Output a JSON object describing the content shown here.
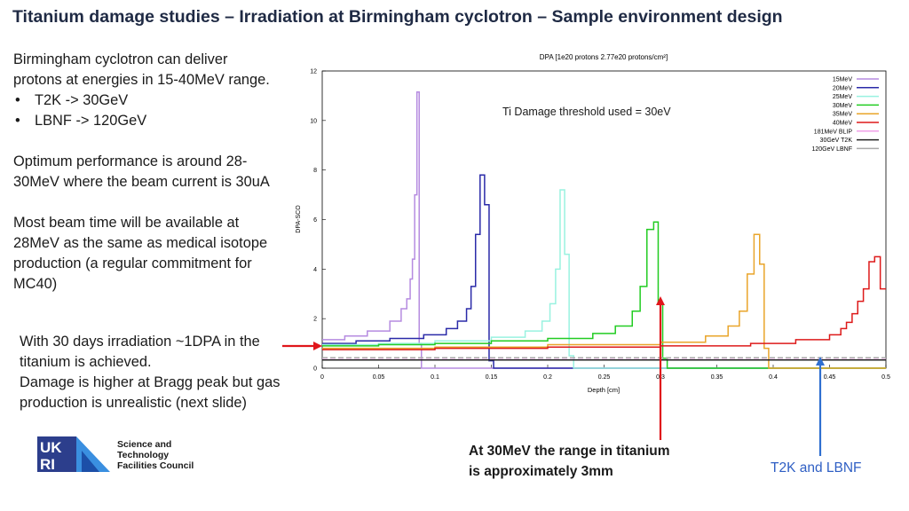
{
  "slide": {
    "title": "Titanium damage studies – Irradiation at Birmingham cyclotron – Sample environment design",
    "left_text": {
      "p1_line1": "Birmingham cyclotron can deliver",
      "p1_line2": "protons at energies in 15-40MeV range.",
      "bullet1": "T2K -> 30GeV",
      "bullet2": "LBNF -> 120GeV",
      "p2_line1": "Optimum performance is around 28-",
      "p2_line2": "30MeV where the beam current is 30uA",
      "p3_line1": "Most beam time will be available at",
      "p3_line2": "28MeV as the same as medical isotope",
      "p3_line3": "production (a regular commitment for",
      "p3_line4": "MC40)"
    },
    "box_text": {
      "line1": "With 30 days irradiation ~1DPA in the",
      "line2": "titanium is achieved.",
      "line3": "Damage is higher at Bragg peak but gas",
      "line4": "production is unrealistic (next slide)"
    },
    "annotations": {
      "red_line1": "At 30MeV the range in titanium",
      "red_line2": "is approximately 3mm",
      "blue": "T2K and LBNF"
    },
    "logo": {
      "mark": "UKRI",
      "line1": "Science and",
      "line2": "Technology",
      "line3": "Facilities Council"
    },
    "colors": {
      "title": "#1f2a44",
      "red_arrow": "#e0161b",
      "blue_arrow": "#2f6fd0"
    }
  },
  "chart_data": {
    "type": "line",
    "title": "DPA [1e20 protons 2.77e20 protons/cm²]",
    "xlabel": "Depth [cm]",
    "ylabel": "DPA-SCO",
    "annotation": "Ti Damage threshold used = 30eV",
    "xlim": [
      0,
      0.5
    ],
    "ylim": [
      0,
      12
    ],
    "xticks": [
      "0",
      "0.05",
      "0.1",
      "0.15",
      "0.2",
      "0.25",
      "0.3",
      "0.35",
      "0.4",
      "0.45",
      "0.5"
    ],
    "yticks": [
      "0",
      "2",
      "4",
      "6",
      "8",
      "10",
      "12"
    ],
    "grid": false,
    "legend_position": "top-right",
    "series": [
      {
        "name": "15MeV",
        "color": "#b58be0",
        "x": [
          0,
          0.02,
          0.04,
          0.06,
          0.07,
          0.075,
          0.078,
          0.08,
          0.082,
          0.084,
          0.086,
          0.088,
          0.09,
          0.5
        ],
        "y": [
          1.15,
          1.3,
          1.5,
          1.9,
          2.4,
          2.8,
          3.6,
          4.4,
          7.0,
          11.15,
          1.0,
          0.0,
          0.0,
          0.0
        ]
      },
      {
        "name": "20MeV",
        "color": "#2a2aa8",
        "x": [
          0,
          0.03,
          0.06,
          0.09,
          0.11,
          0.12,
          0.128,
          0.132,
          0.136,
          0.14,
          0.144,
          0.148,
          0.152,
          0.5
        ],
        "y": [
          1.0,
          1.1,
          1.2,
          1.35,
          1.6,
          1.9,
          2.4,
          3.3,
          5.4,
          7.8,
          6.6,
          0.3,
          0.0,
          0.0
        ]
      },
      {
        "name": "25MeV",
        "color": "#99f2e0",
        "x": [
          0,
          0.05,
          0.1,
          0.15,
          0.18,
          0.195,
          0.202,
          0.207,
          0.211,
          0.215,
          0.219,
          0.223,
          0.226,
          0.5
        ],
        "y": [
          0.95,
          1.0,
          1.1,
          1.25,
          1.5,
          1.9,
          2.6,
          4.0,
          7.2,
          4.6,
          0.5,
          0.0,
          0.0,
          0.0
        ]
      },
      {
        "name": "30MeV",
        "color": "#22cc22",
        "x": [
          0,
          0.05,
          0.1,
          0.15,
          0.2,
          0.24,
          0.26,
          0.275,
          0.282,
          0.288,
          0.294,
          0.298,
          0.302,
          0.306,
          0.5
        ],
        "y": [
          0.9,
          0.95,
          1.0,
          1.1,
          1.2,
          1.4,
          1.7,
          2.3,
          3.3,
          5.6,
          5.9,
          2.6,
          0.4,
          0.0,
          0.0
        ]
      },
      {
        "name": "35MeV",
        "color": "#e9a52a",
        "x": [
          0,
          0.1,
          0.2,
          0.3,
          0.34,
          0.36,
          0.37,
          0.377,
          0.383,
          0.388,
          0.392,
          0.396,
          0.4,
          0.5
        ],
        "y": [
          0.8,
          0.85,
          0.95,
          1.05,
          1.3,
          1.7,
          2.3,
          3.8,
          5.4,
          4.2,
          0.8,
          0.0,
          0.0,
          0.0
        ]
      },
      {
        "name": "40MeV",
        "color": "#dd1a1a",
        "x": [
          0,
          0.1,
          0.2,
          0.3,
          0.38,
          0.42,
          0.45,
          0.46,
          0.465,
          0.47,
          0.475,
          0.48,
          0.485,
          0.49,
          0.495,
          0.5
        ],
        "y": [
          0.75,
          0.8,
          0.85,
          0.9,
          1.0,
          1.15,
          1.35,
          1.6,
          1.85,
          2.2,
          2.7,
          3.2,
          4.3,
          4.5,
          3.2,
          3.2
        ]
      },
      {
        "name": "181MeV BLIP",
        "color": "#f0a0e8",
        "x": [
          0,
          0.5
        ],
        "y": [
          0.35,
          0.35
        ]
      },
      {
        "name": "30GeV T2K",
        "color": "#222222",
        "x": [
          0,
          0.5
        ],
        "y": [
          0.33,
          0.33
        ]
      },
      {
        "name": "120GeV LBNF",
        "color": "#aaaaaa",
        "x": [
          0,
          0.5
        ],
        "y": [
          0.42,
          0.42
        ]
      }
    ]
  }
}
